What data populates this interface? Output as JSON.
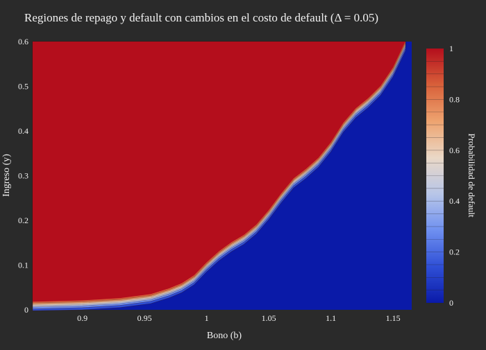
{
  "chart_data": {
    "type": "heatmap",
    "title": "Regiones de repago y default con cambios en el costo de default (Δ = 0.05)",
    "xlabel": "Bono (b)",
    "ylabel": "Ingreso (y)",
    "xlim": [
      0.86,
      1.165
    ],
    "ylim": [
      0,
      0.6
    ],
    "x_ticks": [
      0.9,
      0.95,
      1,
      1.05,
      1.1,
      1.15
    ],
    "x_tick_labels": [
      "0.9",
      "0.95",
      "1",
      "1.05",
      "1.1",
      "1.15"
    ],
    "y_ticks": [
      0,
      0.1,
      0.2,
      0.3,
      0.4,
      0.5,
      0.6
    ],
    "y_tick_labels": [
      "0",
      "0.1",
      "0.2",
      "0.3",
      "0.4",
      "0.5",
      "0.6"
    ],
    "colorbar": {
      "title": "Probabilidad de default",
      "range": [
        0,
        1
      ],
      "ticks": [
        0,
        0.2,
        0.4,
        0.6,
        0.8,
        1
      ],
      "tick_labels": [
        "0",
        "0.2",
        "0.4",
        "0.6",
        "0.8",
        "1"
      ],
      "colorscale": [
        "#0a1aa8",
        "#2f4fd6",
        "#6f90f0",
        "#b8c6e8",
        "#ead8c6",
        "#eea36f",
        "#d8603a",
        "#b40e1c"
      ]
    },
    "default_boundary": {
      "x": [
        0.86,
        0.9,
        0.93,
        0.955,
        0.97,
        0.98,
        0.99,
        1.0,
        1.01,
        1.02,
        1.03,
        1.04,
        1.05,
        1.06,
        1.07,
        1.08,
        1.09,
        1.1,
        1.11,
        1.12,
        1.13,
        1.14,
        1.15,
        1.16
      ],
      "y": [
        0.015,
        0.018,
        0.023,
        0.032,
        0.045,
        0.062,
        0.08,
        0.1,
        0.12,
        0.145,
        0.17,
        0.195,
        0.22,
        0.25,
        0.285,
        0.315,
        0.345,
        0.375,
        0.41,
        0.44,
        0.47,
        0.505,
        0.545,
        0.595
      ]
    },
    "default_region": "upper-left",
    "repay_region": "lower-right"
  }
}
